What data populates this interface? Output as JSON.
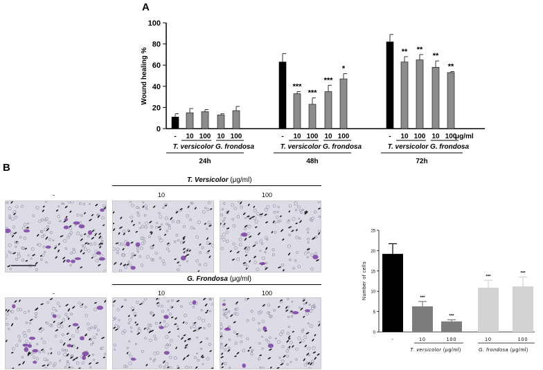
{
  "panel_a_label": "A",
  "panel_b_label": "B",
  "chart_data": [
    {
      "type": "bar",
      "panel": "A",
      "ylabel": "Wound healing %",
      "ylim": [
        0,
        100
      ],
      "yticks": [
        "0",
        "20",
        "40",
        "60",
        "80",
        "100"
      ],
      "unit_label": "μg/ml",
      "groups": [
        {
          "time": "24h",
          "categories": [
            "-",
            "10",
            "100",
            "10",
            "100"
          ],
          "values": [
            11,
            15,
            16,
            13,
            17
          ],
          "errors": [
            3,
            4,
            2,
            1,
            4
          ],
          "stars": [
            "",
            "",
            "",
            "",
            ""
          ]
        },
        {
          "time": "48h",
          "categories": [
            "-",
            "10",
            "100",
            "10",
            "100"
          ],
          "values": [
            63,
            33,
            23,
            35,
            47
          ],
          "errors": [
            8,
            2,
            6,
            6,
            5
          ],
          "stars": [
            "",
            "***",
            "***",
            "***",
            "*"
          ]
        },
        {
          "time": "72h",
          "categories": [
            "-",
            "10",
            "100",
            "10",
            "100"
          ],
          "values": [
            82,
            63,
            65,
            58,
            53
          ],
          "errors": [
            7,
            5,
            5,
            6,
            1
          ],
          "stars": [
            "",
            "**",
            "**",
            "**",
            "**"
          ]
        }
      ],
      "species_labels": [
        "T. versicolor",
        "G. frondosa"
      ],
      "colors": {
        "control": "#000000",
        "treated": "#8c8c8c"
      }
    },
    {
      "type": "bar",
      "panel": "B",
      "ylabel": "Number of cells",
      "ylim": [
        0,
        25
      ],
      "yticks": [
        "0",
        "5",
        "10",
        "15",
        "20",
        "25"
      ],
      "categories": [
        "-",
        "10",
        "100",
        "10",
        "100"
      ],
      "values": [
        19.2,
        6.3,
        2.6,
        10.9,
        11.2
      ],
      "errors": [
        2.5,
        1.2,
        0.4,
        1.8,
        2.3
      ],
      "stars": [
        "",
        "***",
        "***",
        "***",
        "***"
      ],
      "colors": [
        "#000000",
        "#7c7c7c",
        "#7c7c7c",
        "#d3d3d3",
        "#d3d3d3"
      ],
      "species": [
        {
          "name": "T. versicolor",
          "unit": "(μg/ml)"
        },
        {
          "name": "G. frondosa",
          "unit": "(μg/ml)"
        }
      ]
    }
  ],
  "micrographs": {
    "tv_header": {
      "name": "T. Versicolor",
      "unit": "(μg/ml)"
    },
    "gf_header": {
      "name": "G. Frondosa",
      "unit": "(μg/ml)"
    },
    "col_labels": [
      "-",
      "10",
      "100"
    ]
  }
}
